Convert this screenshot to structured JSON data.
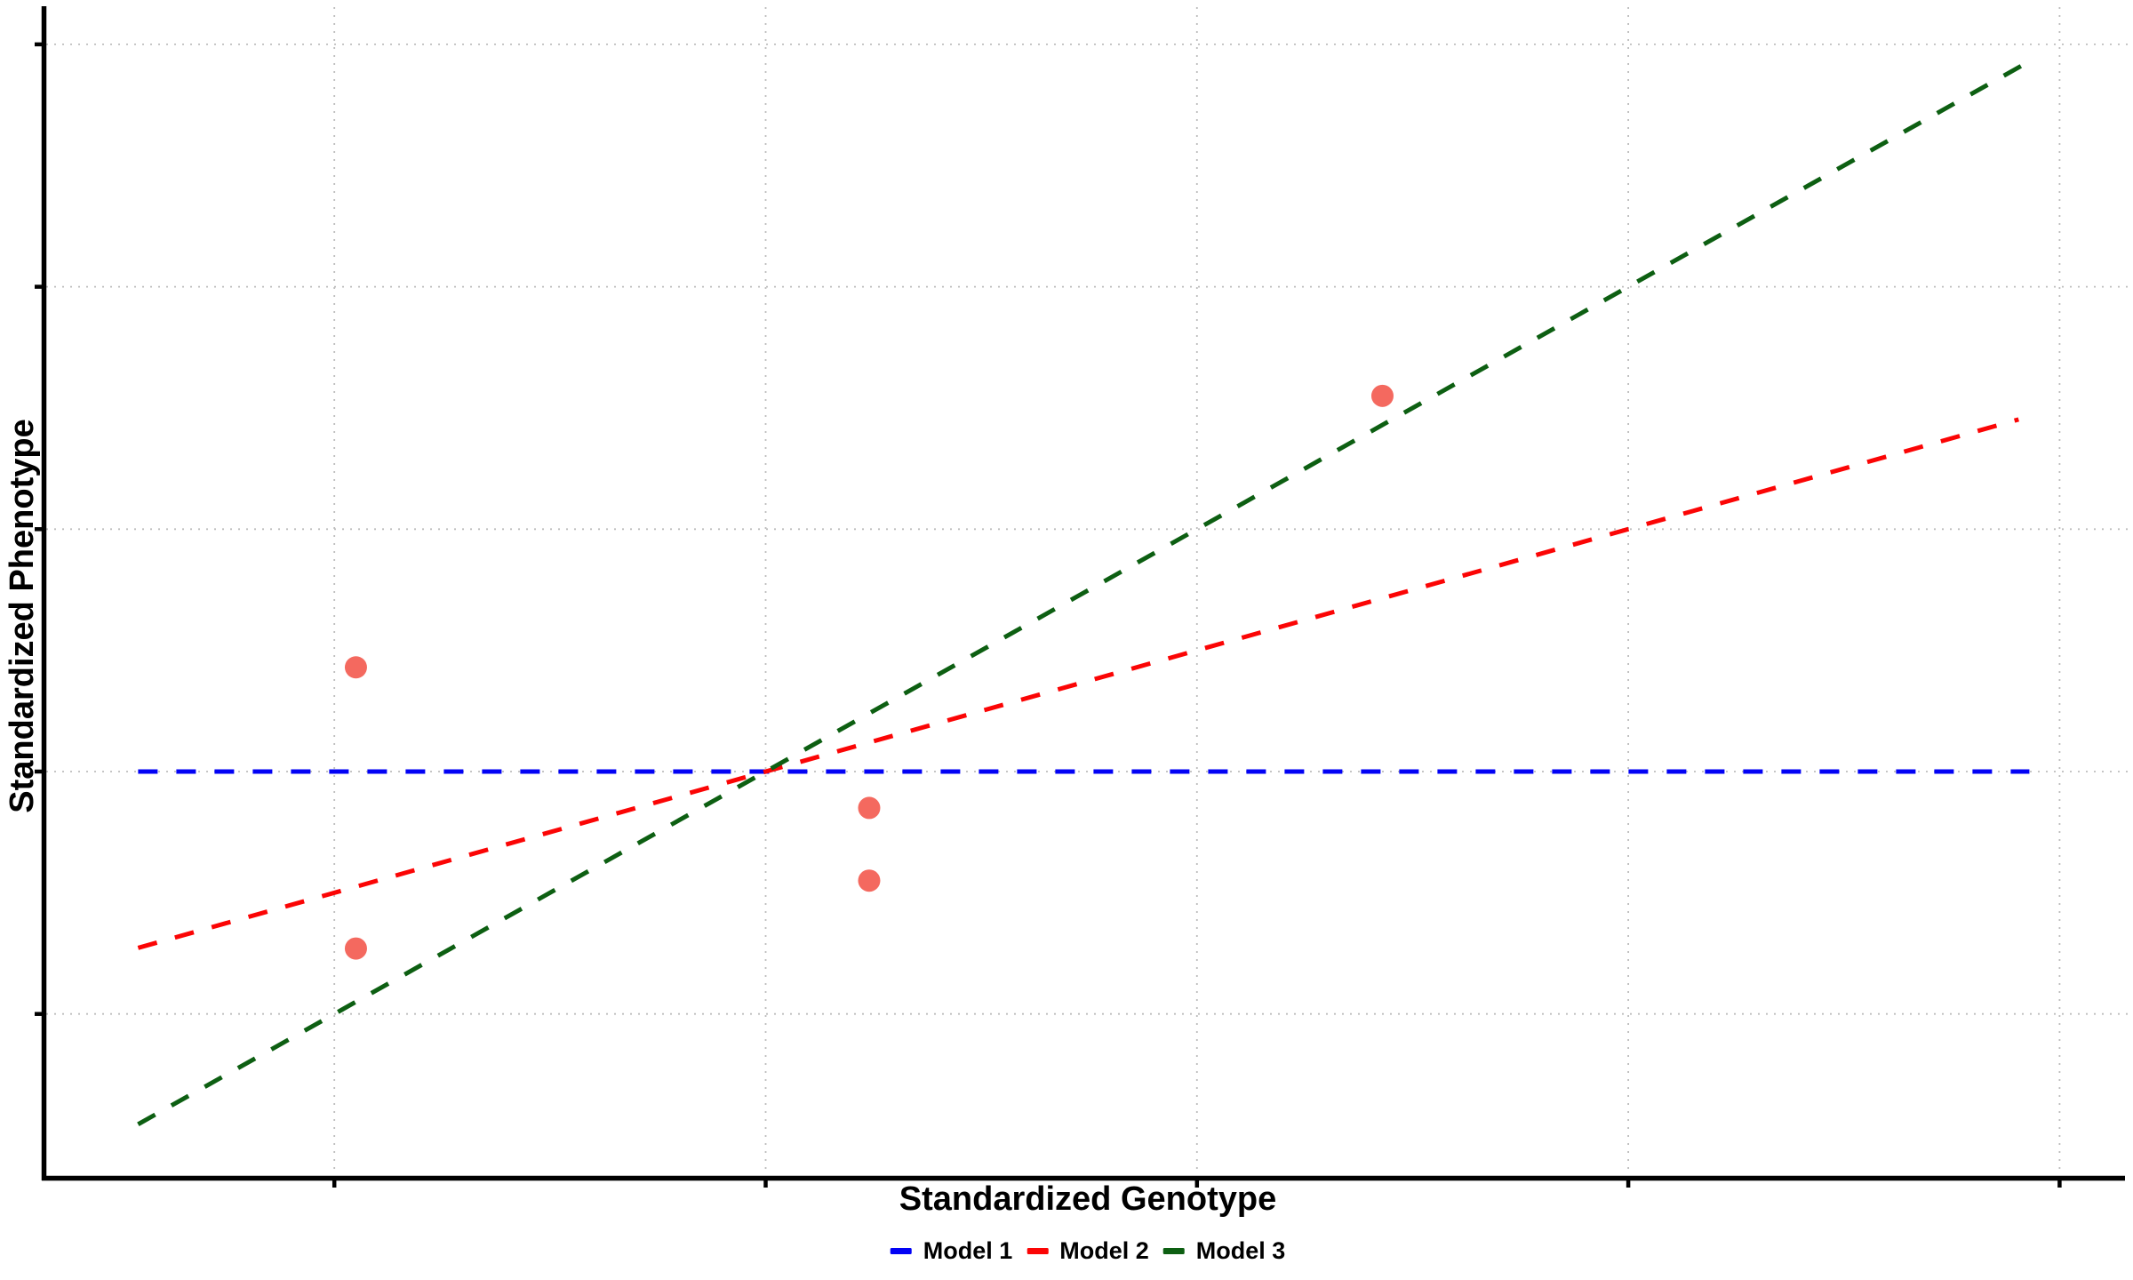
{
  "figure": {
    "title": "",
    "x_axis_label": "Standardized Genotype",
    "y_axis_label": "Standardized Phenotype"
  },
  "legend": {
    "position": "bottom-center",
    "items": [
      {
        "label": "Model 1",
        "color": "#0202F5"
      },
      {
        "label": "Model 2",
        "color": "#FB0505"
      },
      {
        "label": "Model 3",
        "color": "#0D5F12"
      }
    ]
  },
  "chart_data": {
    "type": "scatter",
    "title": "",
    "xlabel": "Standardized Genotype",
    "ylabel": "Standardized Phenotype",
    "x_range": [
      -1.67,
      3.15
    ],
    "y_range": [
      -1.68,
      3.15
    ],
    "x_gridlines": [
      -1,
      0,
      1,
      2,
      3
    ],
    "y_gridlines": [
      -1,
      0,
      1,
      2,
      3
    ],
    "tick_labels_shown": false,
    "grid_style": "dotted",
    "points": {
      "name": "observations",
      "color": "#F4695F",
      "radius_px": 12.5,
      "data": [
        {
          "x": -0.95,
          "y": 0.43
        },
        {
          "x": -0.95,
          "y": -0.73
        },
        {
          "x": 0.24,
          "y": -0.15
        },
        {
          "x": 0.24,
          "y": -0.45
        },
        {
          "x": 1.43,
          "y": 1.55
        }
      ]
    },
    "lines": [
      {
        "name": "Model 1",
        "slope": 0.0,
        "intercept": 0.0,
        "x_start": -1.455,
        "x_end": 2.93,
        "color": "#0202F5",
        "style": "dashed"
      },
      {
        "name": "Model 2",
        "slope": 0.5,
        "intercept": 0.0,
        "x_start": -1.455,
        "x_end": 2.905,
        "color": "#FB0505",
        "style": "dashed"
      },
      {
        "name": "Model 3",
        "slope": 1.0,
        "intercept": 0.0,
        "x_start": -1.455,
        "x_end": 2.93,
        "color": "#0D5F12",
        "style": "dashed"
      }
    ]
  }
}
